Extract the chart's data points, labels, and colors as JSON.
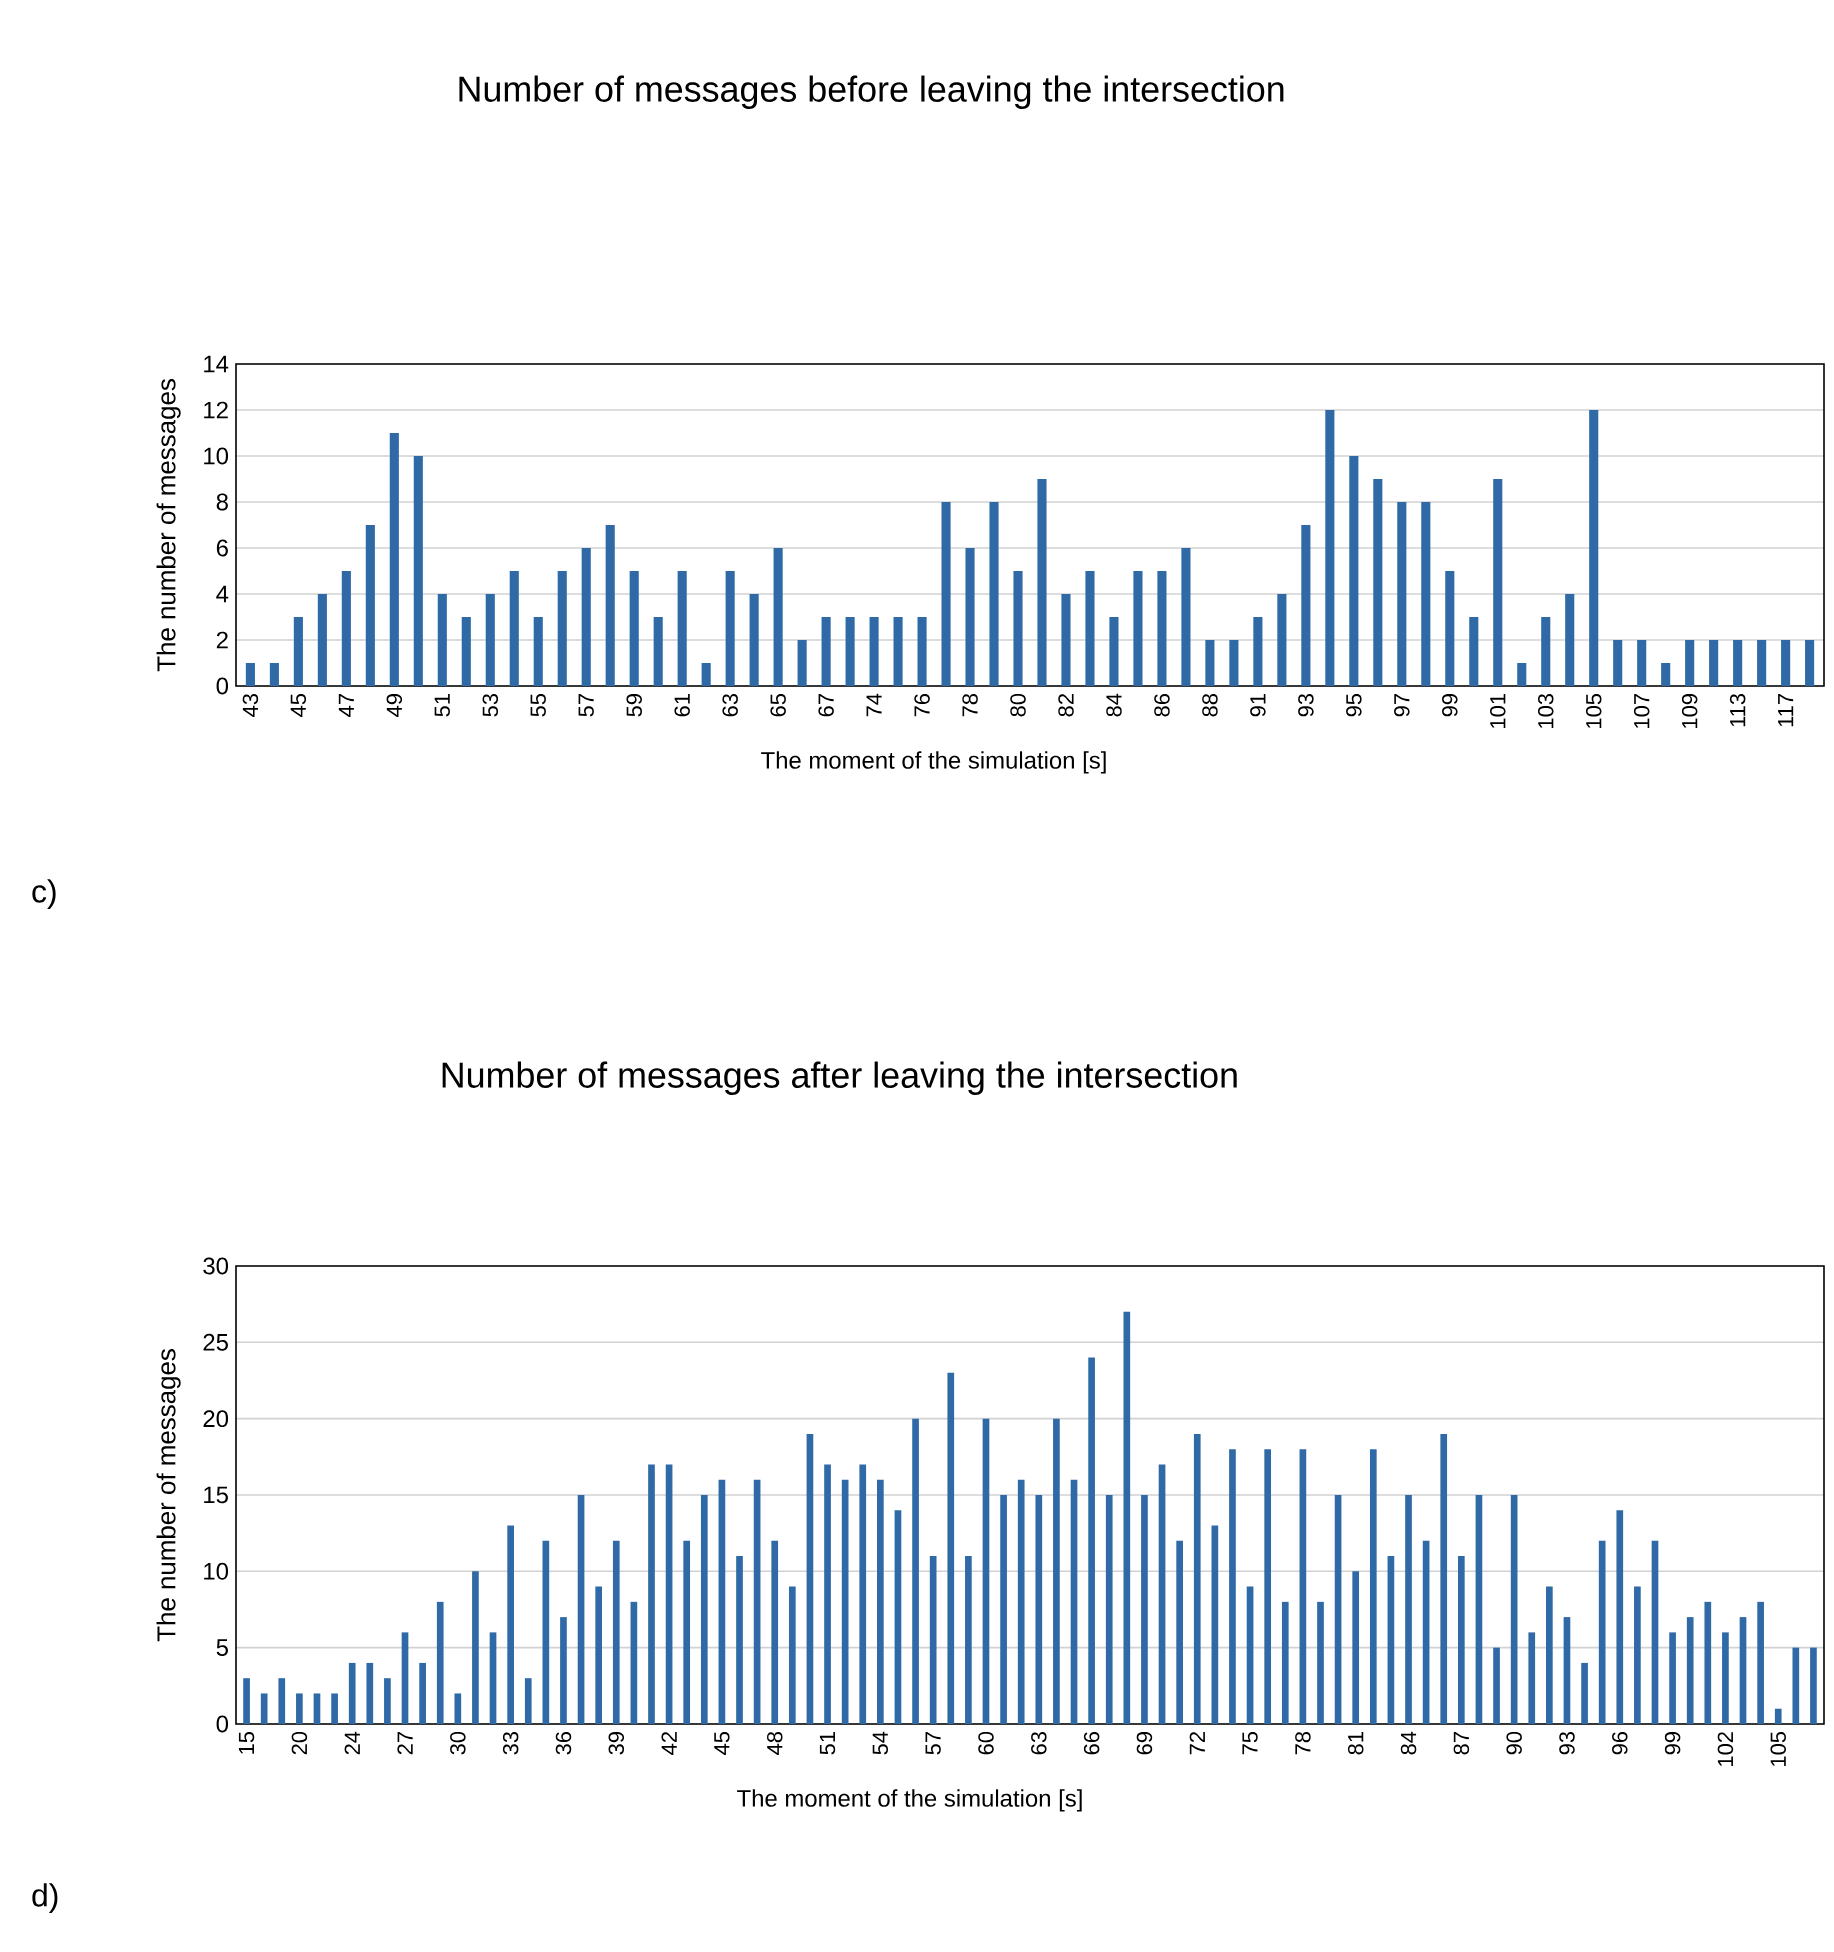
{
  "chart_data": [
    {
      "type": "bar",
      "title": "Number of messages  before leaving the intersection",
      "xlabel": "The moment  of the simulation  [s]",
      "ylabel": "The number of messages",
      "categories": [
        "43",
        null,
        "45",
        null,
        "47",
        null,
        "49",
        null,
        "51",
        null,
        "53",
        null,
        "55",
        null,
        "57",
        null,
        "59",
        null,
        "61",
        null,
        "63",
        null,
        "65",
        null,
        "67",
        null,
        "74",
        null,
        "76",
        null,
        "78",
        null,
        "80",
        null,
        "82",
        null,
        "84",
        null,
        "86",
        null,
        "88",
        null,
        "91",
        null,
        "93",
        null,
        "95",
        null,
        "97",
        null,
        "99",
        null,
        "101",
        null,
        "103",
        null,
        "105",
        null,
        "107",
        null,
        "109",
        null,
        "113",
        null,
        "117",
        null
      ],
      "values": [
        1,
        1,
        3,
        4,
        5,
        7,
        11,
        10,
        4,
        3,
        4,
        5,
        3,
        5,
        6,
        7,
        5,
        3,
        5,
        1,
        5,
        4,
        6,
        2,
        3,
        3,
        3,
        3,
        3,
        8,
        6,
        8,
        5,
        9,
        4,
        5,
        3,
        5,
        5,
        6,
        2,
        2,
        3,
        4,
        7,
        12,
        10,
        9,
        8,
        8,
        5,
        3,
        9,
        1,
        3,
        4,
        12,
        2,
        2,
        1,
        2,
        2,
        2,
        2,
        2,
        2
      ],
      "color": "#2f6aa6",
      "ylim": [
        0,
        14
      ],
      "yticks": [
        0,
        2,
        4,
        6,
        8,
        10,
        12,
        14
      ],
      "grid": "y",
      "annotations": [
        "c)"
      ]
    },
    {
      "type": "bar",
      "title": "Number of messages  after leaving the intersection",
      "xlabel": "The moment  of the simulation  [s]",
      "ylabel": "The number of messages",
      "categories": [
        "15",
        null,
        null,
        "20",
        null,
        null,
        "24",
        null,
        null,
        "27",
        null,
        null,
        "30",
        null,
        null,
        "33",
        null,
        null,
        "36",
        null,
        null,
        "39",
        null,
        null,
        "42",
        null,
        null,
        "45",
        null,
        null,
        "48",
        null,
        null,
        "51",
        null,
        null,
        "54",
        null,
        null,
        "57",
        null,
        null,
        "60",
        null,
        null,
        "63",
        null,
        null,
        "66",
        null,
        null,
        "69",
        null,
        null,
        "72",
        null,
        null,
        "75",
        null,
        null,
        "78",
        null,
        null,
        "81",
        null,
        null,
        "84",
        null,
        null,
        "87",
        null,
        null,
        "90",
        null,
        null,
        "93",
        null,
        null,
        "96",
        null,
        null,
        "99",
        null,
        null,
        "102",
        null,
        null,
        "105",
        null,
        null
      ],
      "values": [
        3,
        2,
        3,
        2,
        2,
        2,
        4,
        4,
        3,
        6,
        4,
        8,
        2,
        10,
        6,
        13,
        3,
        12,
        7,
        15,
        9,
        12,
        8,
        17,
        17,
        12,
        15,
        16,
        11,
        16,
        12,
        9,
        19,
        17,
        16,
        17,
        16,
        14,
        20,
        11,
        23,
        11,
        20,
        15,
        16,
        15,
        20,
        16,
        24,
        15,
        27,
        15,
        17,
        12,
        19,
        13,
        18,
        9,
        18,
        8,
        18,
        8,
        15,
        10,
        18,
        11,
        15,
        12,
        19,
        11,
        15,
        5,
        15,
        6,
        9,
        7,
        4,
        12,
        14,
        9,
        12,
        6,
        7,
        8,
        6,
        7,
        8,
        1,
        5,
        5
      ],
      "color": "#2f6aa6",
      "ylim": [
        0,
        30
      ],
      "yticks": [
        0,
        5,
        10,
        15,
        20,
        25,
        30
      ],
      "grid": "y",
      "annotations": [
        "d)"
      ]
    }
  ]
}
